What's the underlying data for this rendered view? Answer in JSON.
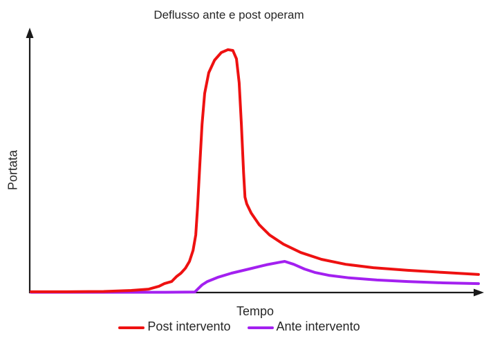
{
  "colors": {
    "axis": "#1a1a1a",
    "text": "#262626",
    "background": "#ffffff",
    "post_intervento": "#ee1111",
    "ante_intervento": "#a320f0"
  },
  "chart_data": {
    "type": "line",
    "title": "Deflusso ante e post operam",
    "xlabel": "Tempo",
    "ylabel": "Portata",
    "xlim": [
      0,
      100
    ],
    "ylim": [
      0,
      100
    ],
    "grid": false,
    "axis_ticks": "none",
    "axis_style": "arrow-tipped, unlabeled qualitative axes",
    "legend_position": "bottom",
    "series": [
      {
        "name": "Post intervento",
        "color": "#ee1111",
        "description": "hydrograph after works: steep tall narrow peak then long decaying tail",
        "x": [
          0,
          8,
          16.2,
          22.4,
          26.3,
          28.6,
          29.8,
          30.6,
          31.4,
          32.5,
          33.5,
          34.5,
          35.4,
          36.2,
          36.8,
          37.2,
          37.7,
          38.2,
          38.8,
          39.7,
          41.0,
          42.5,
          44.0,
          45.1,
          45.9,
          46.5,
          47.0,
          47.5,
          47.8,
          48.2,
          49.2,
          51.0,
          53.3,
          56.4,
          60.3,
          64.9,
          70.3,
          76.5,
          84.2,
          92.0,
          100
        ],
        "y": [
          0.3,
          0.3,
          0.4,
          0.8,
          1.3,
          2.4,
          3.4,
          3.8,
          4.2,
          6.1,
          7.4,
          9.3,
          11.9,
          16.1,
          22.0,
          32.5,
          48.4,
          64.3,
          76.2,
          84.1,
          88.9,
          91.8,
          92.9,
          92.6,
          89.4,
          80.2,
          64.3,
          45.8,
          36.5,
          33.9,
          30.4,
          25.9,
          22.0,
          18.5,
          15.3,
          12.7,
          10.8,
          9.5,
          8.5,
          7.7,
          6.9
        ]
      },
      {
        "name": "Ante intervento",
        "color": "#a320f0",
        "description": "hydrograph before works: low gentle hump peaking later than red curve",
        "x": [
          0,
          10,
          20,
          30,
          36.6,
          37.4,
          38.2,
          39.4,
          41.7,
          44.8,
          48.7,
          52.6,
          55.6,
          56.7,
          58.7,
          61.1,
          63.4,
          66.5,
          71.1,
          77.3,
          84.2,
          92.0,
          100
        ],
        "y": [
          0.1,
          0.1,
          0.1,
          0.1,
          0.2,
          1.6,
          2.9,
          4.2,
          5.8,
          7.4,
          9.0,
          10.6,
          11.6,
          11.9,
          10.8,
          9.0,
          7.7,
          6.6,
          5.6,
          4.8,
          4.2,
          3.7,
          3.4
        ]
      }
    ]
  }
}
